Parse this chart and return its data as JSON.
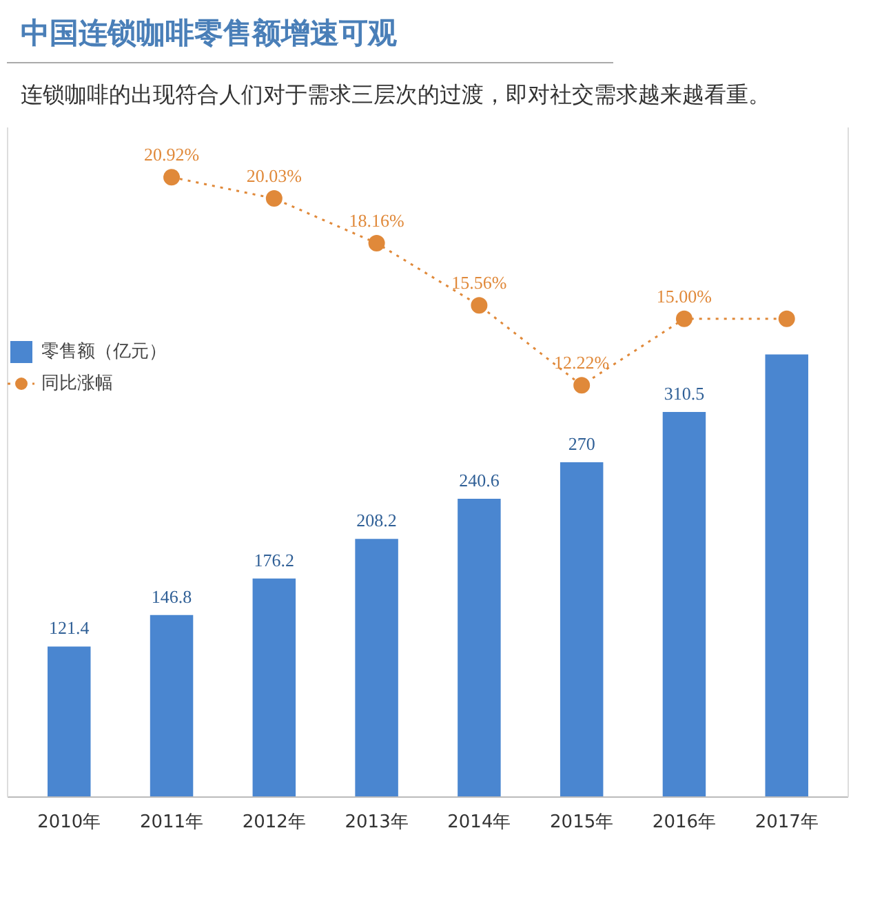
{
  "chart_data": {
    "type": "bar",
    "title": "中国连锁咖啡零售额增速可观",
    "subtitle": "连锁咖啡的出现符合人们对于需求三层次的过渡，即对社交需求越来越看重。",
    "categories": [
      "2010年",
      "2011年",
      "2012年",
      "2013年",
      "2014年",
      "2015年",
      "2016年",
      "2017年"
    ],
    "series": [
      {
        "name": "零售额（亿元）",
        "color": "#4a86d0",
        "values": [
          121.4,
          146.8,
          176.2,
          208.2,
          240.6,
          270,
          310.5,
          357
        ],
        "value_labels": [
          "121.4",
          "146.8",
          "176.2",
          "208.2",
          "240.6",
          "270",
          "310.5",
          null
        ]
      },
      {
        "name": "同比涨幅",
        "type": "line",
        "axis": "y2",
        "color": "#e0893a",
        "values": [
          null,
          20.92,
          20.03,
          18.16,
          15.56,
          12.22,
          15.0,
          15.0
        ],
        "value_labels": [
          null,
          "20.92%",
          "20.03%",
          "18.16%",
          "15.56%",
          "12.22%",
          "15.00%",
          null
        ],
        "marker": "circle",
        "line_style": "dotted"
      }
    ],
    "ylim": [
      0,
      540
    ],
    "y2lim": [
      -5,
      23
    ],
    "tick_labels": "x",
    "grid": false,
    "legend": "left"
  }
}
